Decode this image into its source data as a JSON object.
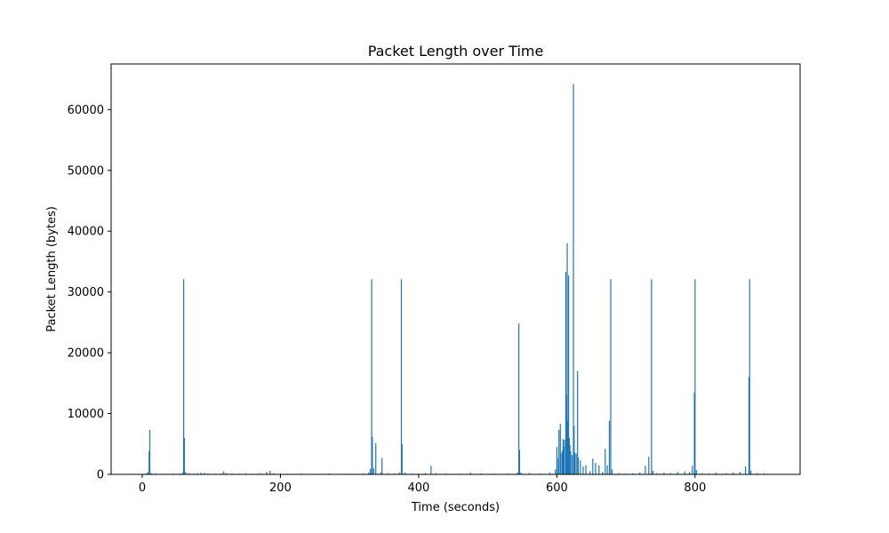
{
  "chart_data": {
    "type": "bar",
    "title": "Packet Length over Time",
    "xlabel": "Time (seconds)",
    "ylabel": "Packet Length (bytes)",
    "xlim": [
      -45,
      952
    ],
    "ylim": [
      0,
      67500
    ],
    "xticks": [
      0,
      200,
      400,
      600,
      800
    ],
    "yticks": [
      0,
      10000,
      20000,
      30000,
      40000,
      50000,
      60000
    ],
    "xtick_labels": [
      "0",
      "200",
      "400",
      "600",
      "800"
    ],
    "ytick_labels": [
      "0",
      "10000",
      "20000",
      "30000",
      "40000",
      "50000",
      "60000"
    ],
    "grid": false,
    "legend": "none",
    "bar_color": "#1f77b4",
    "points": [
      {
        "x": 5,
        "y": 150
      },
      {
        "x": 8,
        "y": 400
      },
      {
        "x": 10,
        "y": 3800
      },
      {
        "x": 11,
        "y": 7300
      },
      {
        "x": 13,
        "y": 200
      },
      {
        "x": 20,
        "y": 150
      },
      {
        "x": 30,
        "y": 100
      },
      {
        "x": 45,
        "y": 120
      },
      {
        "x": 55,
        "y": 150
      },
      {
        "x": 59,
        "y": 300
      },
      {
        "x": 60,
        "y": 32100
      },
      {
        "x": 61,
        "y": 6000
      },
      {
        "x": 63,
        "y": 400
      },
      {
        "x": 68,
        "y": 200
      },
      {
        "x": 75,
        "y": 150
      },
      {
        "x": 80,
        "y": 200
      },
      {
        "x": 85,
        "y": 300
      },
      {
        "x": 90,
        "y": 250
      },
      {
        "x": 95,
        "y": 150
      },
      {
        "x": 105,
        "y": 100
      },
      {
        "x": 115,
        "y": 200
      },
      {
        "x": 118,
        "y": 500
      },
      {
        "x": 122,
        "y": 200
      },
      {
        "x": 130,
        "y": 150
      },
      {
        "x": 140,
        "y": 100
      },
      {
        "x": 150,
        "y": 150
      },
      {
        "x": 160,
        "y": 100
      },
      {
        "x": 170,
        "y": 200
      },
      {
        "x": 180,
        "y": 400
      },
      {
        "x": 185,
        "y": 600
      },
      {
        "x": 190,
        "y": 200
      },
      {
        "x": 200,
        "y": 150
      },
      {
        "x": 210,
        "y": 100
      },
      {
        "x": 230,
        "y": 120
      },
      {
        "x": 250,
        "y": 100
      },
      {
        "x": 270,
        "y": 150
      },
      {
        "x": 300,
        "y": 100
      },
      {
        "x": 320,
        "y": 150
      },
      {
        "x": 328,
        "y": 300
      },
      {
        "x": 330,
        "y": 900
      },
      {
        "x": 332,
        "y": 32100
      },
      {
        "x": 333,
        "y": 6200
      },
      {
        "x": 335,
        "y": 1000
      },
      {
        "x": 338,
        "y": 5100
      },
      {
        "x": 345,
        "y": 300
      },
      {
        "x": 347,
        "y": 2700
      },
      {
        "x": 355,
        "y": 200
      },
      {
        "x": 365,
        "y": 150
      },
      {
        "x": 372,
        "y": 300
      },
      {
        "x": 375,
        "y": 32100
      },
      {
        "x": 376,
        "y": 5000
      },
      {
        "x": 380,
        "y": 300
      },
      {
        "x": 390,
        "y": 150
      },
      {
        "x": 400,
        "y": 100
      },
      {
        "x": 410,
        "y": 200
      },
      {
        "x": 418,
        "y": 1400
      },
      {
        "x": 425,
        "y": 200
      },
      {
        "x": 440,
        "y": 150
      },
      {
        "x": 460,
        "y": 100
      },
      {
        "x": 475,
        "y": 300
      },
      {
        "x": 490,
        "y": 150
      },
      {
        "x": 510,
        "y": 100
      },
      {
        "x": 530,
        "y": 150
      },
      {
        "x": 543,
        "y": 300
      },
      {
        "x": 545,
        "y": 24800
      },
      {
        "x": 546,
        "y": 4000
      },
      {
        "x": 548,
        "y": 300
      },
      {
        "x": 560,
        "y": 200
      },
      {
        "x": 575,
        "y": 150
      },
      {
        "x": 590,
        "y": 300
      },
      {
        "x": 598,
        "y": 800
      },
      {
        "x": 600,
        "y": 4500
      },
      {
        "x": 602,
        "y": 2600
      },
      {
        "x": 603,
        "y": 7300
      },
      {
        "x": 605,
        "y": 8300
      },
      {
        "x": 606,
        "y": 3500
      },
      {
        "x": 608,
        "y": 3900
      },
      {
        "x": 609,
        "y": 5800
      },
      {
        "x": 610,
        "y": 4600
      },
      {
        "x": 611,
        "y": 5700
      },
      {
        "x": 613,
        "y": 33300
      },
      {
        "x": 614,
        "y": 13000
      },
      {
        "x": 615,
        "y": 38000
      },
      {
        "x": 616,
        "y": 8800
      },
      {
        "x": 617,
        "y": 32700
      },
      {
        "x": 618,
        "y": 6000
      },
      {
        "x": 619,
        "y": 4800
      },
      {
        "x": 620,
        "y": 3800
      },
      {
        "x": 622,
        "y": 3200
      },
      {
        "x": 624,
        "y": 64200
      },
      {
        "x": 625,
        "y": 8000
      },
      {
        "x": 626,
        "y": 3600
      },
      {
        "x": 628,
        "y": 3400
      },
      {
        "x": 630,
        "y": 17000
      },
      {
        "x": 631,
        "y": 2800
      },
      {
        "x": 634,
        "y": 2300
      },
      {
        "x": 638,
        "y": 1300
      },
      {
        "x": 642,
        "y": 1500
      },
      {
        "x": 648,
        "y": 500
      },
      {
        "x": 652,
        "y": 2600
      },
      {
        "x": 656,
        "y": 1900
      },
      {
        "x": 661,
        "y": 1500
      },
      {
        "x": 666,
        "y": 400
      },
      {
        "x": 670,
        "y": 4200
      },
      {
        "x": 673,
        "y": 1500
      },
      {
        "x": 676,
        "y": 8800
      },
      {
        "x": 678,
        "y": 32100
      },
      {
        "x": 680,
        "y": 800
      },
      {
        "x": 690,
        "y": 200
      },
      {
        "x": 700,
        "y": 150
      },
      {
        "x": 710,
        "y": 200
      },
      {
        "x": 720,
        "y": 300
      },
      {
        "x": 728,
        "y": 1400
      },
      {
        "x": 733,
        "y": 2900
      },
      {
        "x": 737,
        "y": 32100
      },
      {
        "x": 739,
        "y": 600
      },
      {
        "x": 745,
        "y": 200
      },
      {
        "x": 755,
        "y": 300
      },
      {
        "x": 765,
        "y": 200
      },
      {
        "x": 775,
        "y": 400
      },
      {
        "x": 785,
        "y": 500
      },
      {
        "x": 792,
        "y": 400
      },
      {
        "x": 796,
        "y": 1400
      },
      {
        "x": 799,
        "y": 13400
      },
      {
        "x": 800,
        "y": 32100
      },
      {
        "x": 802,
        "y": 700
      },
      {
        "x": 810,
        "y": 200
      },
      {
        "x": 820,
        "y": 150
      },
      {
        "x": 830,
        "y": 300
      },
      {
        "x": 845,
        "y": 200
      },
      {
        "x": 855,
        "y": 300
      },
      {
        "x": 865,
        "y": 400
      },
      {
        "x": 873,
        "y": 1300
      },
      {
        "x": 878,
        "y": 16000
      },
      {
        "x": 879,
        "y": 32100
      },
      {
        "x": 881,
        "y": 600
      },
      {
        "x": 890,
        "y": 200
      },
      {
        "x": 900,
        "y": 150
      },
      {
        "x": 905,
        "y": 100
      }
    ]
  }
}
